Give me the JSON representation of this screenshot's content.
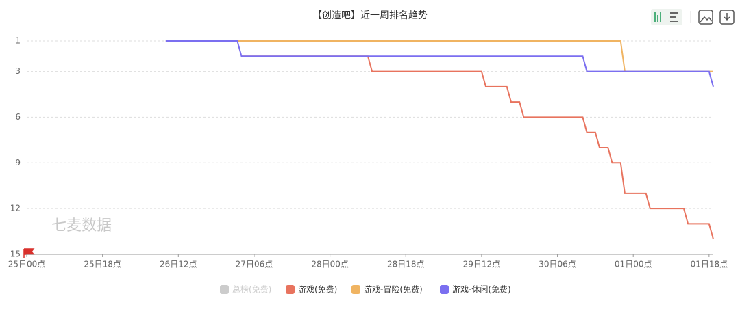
{
  "chart_data": {
    "type": "line",
    "title": "【创造吧】近一周排名趋势",
    "watermark": "七麦数据",
    "xlim": [
      0,
      163
    ],
    "xticks": [
      {
        "value": 0,
        "label": "25日00点"
      },
      {
        "value": 18,
        "label": "25日18点"
      },
      {
        "value": 36,
        "label": "26日12点"
      },
      {
        "value": 54,
        "label": "27日06点"
      },
      {
        "value": 72,
        "label": "28日00点"
      },
      {
        "value": 90,
        "label": "28日18点"
      },
      {
        "value": 108,
        "label": "29日12点"
      },
      {
        "value": 126,
        "label": "30日06点"
      },
      {
        "value": 144,
        "label": "01日00点"
      },
      {
        "value": 162,
        "label": "01日18点"
      }
    ],
    "ylim": [
      1,
      15
    ],
    "y_inverted": true,
    "yticks": [
      1,
      3,
      6,
      9,
      12,
      15
    ],
    "grid": true,
    "series": [
      {
        "name": "总榜(免费)",
        "color": "#cccccc",
        "hidden": true,
        "x": [],
        "values": []
      },
      {
        "name": "游戏(免费)",
        "color": "#e8735e",
        "x": [
          51,
          81,
          82,
          108,
          109,
          114,
          115,
          117,
          118,
          132,
          133,
          135,
          136,
          138,
          139,
          141,
          142,
          147,
          148,
          156,
          157,
          162,
          163
        ],
        "values": [
          2,
          2,
          3,
          3,
          4,
          4,
          5,
          5,
          6,
          6,
          7,
          7,
          8,
          8,
          9,
          9,
          11,
          11,
          12,
          12,
          13,
          13,
          14
        ]
      },
      {
        "name": "游戏-冒险(免费)",
        "color": "#f0b462",
        "x": [
          33,
          141,
          142,
          163
        ],
        "values": [
          1,
          1,
          3,
          3
        ]
      },
      {
        "name": "游戏-休闲(免费)",
        "color": "#7b6ff0",
        "x": [
          33,
          50,
          51,
          132,
          133,
          162,
          163
        ],
        "values": [
          1,
          1,
          2,
          2,
          3,
          3,
          4
        ]
      }
    ]
  }
}
